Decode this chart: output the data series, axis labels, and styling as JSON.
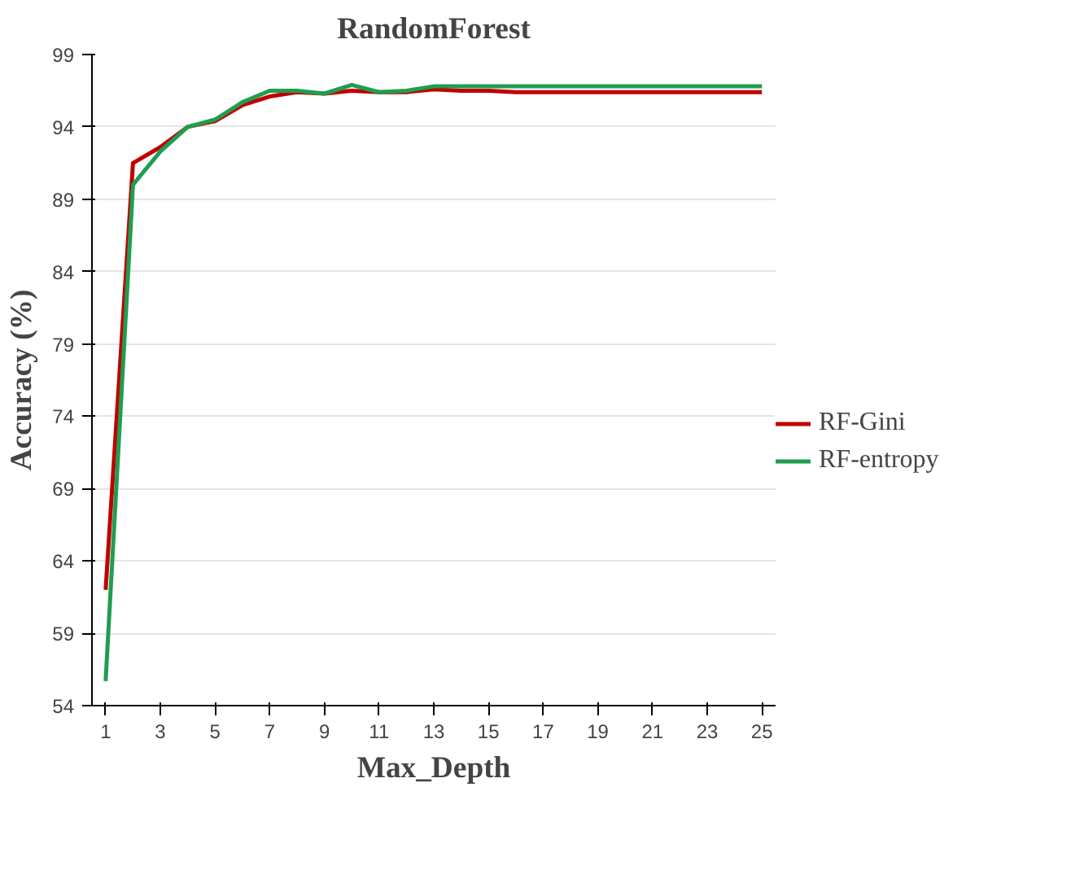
{
  "chart_data": {
    "type": "line",
    "title": "RandomForest",
    "xlabel": "Max_Depth",
    "ylabel": "Accuracy (%)",
    "x": [
      1,
      2,
      3,
      4,
      5,
      6,
      7,
      8,
      9,
      10,
      11,
      12,
      13,
      14,
      15,
      16,
      17,
      18,
      19,
      20,
      21,
      22,
      23,
      24,
      25
    ],
    "series": [
      {
        "name": "RF-Gini",
        "color": "#c00000",
        "values": [
          62,
          91.5,
          92.6,
          94,
          94.4,
          95.5,
          96.1,
          96.4,
          96.3,
          96.5,
          96.4,
          96.4,
          96.6,
          96.5,
          96.5,
          96.4,
          96.4,
          96.4,
          96.4,
          96.4,
          96.4,
          96.4,
          96.4,
          96.4,
          96.4
        ]
      },
      {
        "name": "RF-entropy",
        "color": "#1e9e50",
        "values": [
          55.7,
          90,
          92.3,
          94,
          94.5,
          95.7,
          96.5,
          96.5,
          96.3,
          96.9,
          96.4,
          96.5,
          96.8,
          96.8,
          96.8,
          96.8,
          96.8,
          96.8,
          96.8,
          96.8,
          96.8,
          96.8,
          96.8,
          96.8,
          96.8
        ]
      }
    ],
    "xlim": [
      0.5,
      25.5
    ],
    "xticks": [
      1,
      3,
      5,
      7,
      9,
      11,
      13,
      15,
      17,
      19,
      21,
      23,
      25
    ],
    "ylim": [
      54,
      99
    ],
    "yticks": [
      54,
      59,
      64,
      69,
      74,
      79,
      84,
      89,
      94,
      99
    ],
    "grid": "y",
    "legend": "right",
    "marker": "none",
    "line_style": "solid"
  }
}
